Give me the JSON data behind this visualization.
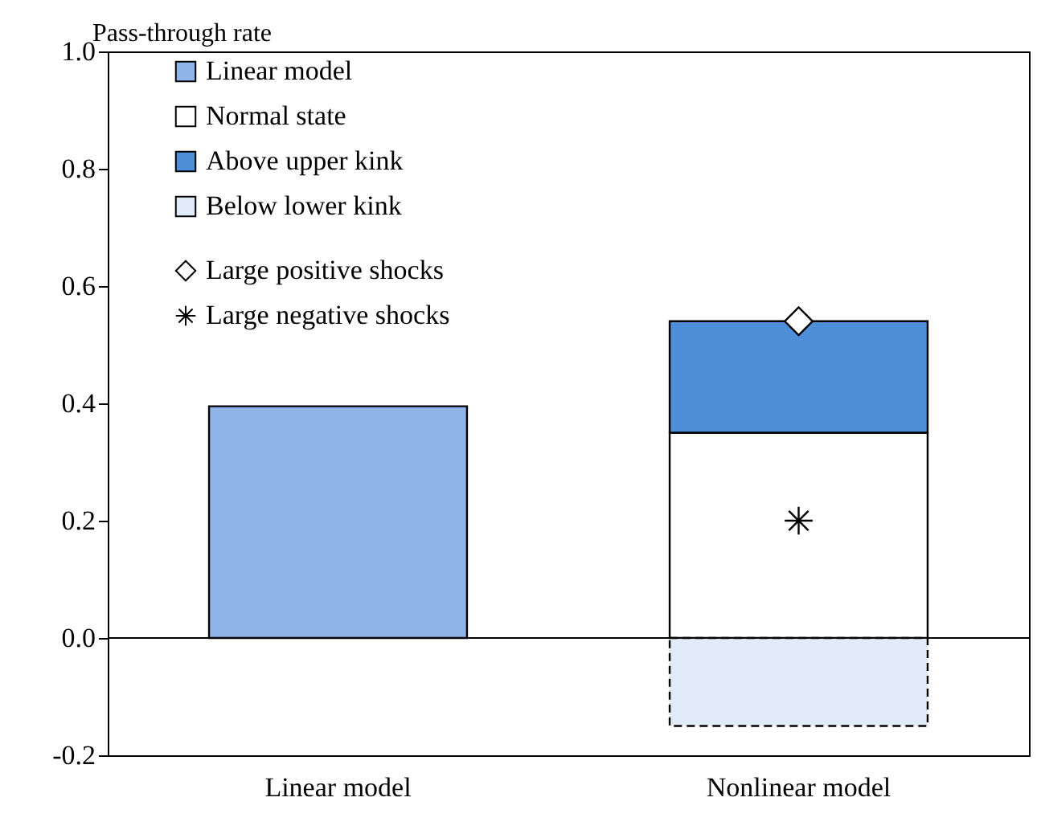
{
  "chart_data": {
    "type": "bar",
    "ylabel": "Pass-through rate",
    "categories": [
      "Linear model",
      "Nonlinear model"
    ],
    "stacked": true,
    "legend": "top left",
    "ylim": [
      -0.2,
      1.0
    ],
    "yticks": [
      {
        "value": -0.2,
        "label": "-0.2"
      },
      {
        "value": 0,
        "label": "0.0"
      },
      {
        "value": 0.2,
        "label": "0.2"
      },
      {
        "value": 0.4,
        "label": "0.4"
      },
      {
        "value": 0.6,
        "label": "0.6"
      },
      {
        "value": 0.8,
        "label": "0.8"
      },
      {
        "value": 1.0,
        "label": "1.0"
      }
    ],
    "series": [
      {
        "name": "Linear model",
        "color": "#8fb5e8",
        "values": [
          0.395,
          null
        ]
      },
      {
        "name": "Normal state",
        "color": "#ffffff",
        "values": [
          null,
          0.35
        ]
      },
      {
        "name": "Above upper kink",
        "color": "#4f8fd9",
        "values": [
          null,
          0.19
        ]
      },
      {
        "name": "Below lower kink",
        "color": "#e1eaf7",
        "values": [
          null,
          -0.15
        ],
        "line_style": "dashed"
      },
      {
        "name": "Large positive shocks",
        "type": "scatter",
        "marker": "diamond",
        "color": "#ffffff",
        "values": [
          null,
          0.54
        ]
      },
      {
        "name": "Large negative shocks",
        "type": "scatter",
        "marker": "cross",
        "color": "#000000",
        "values": [
          null,
          0.2
        ]
      }
    ]
  }
}
